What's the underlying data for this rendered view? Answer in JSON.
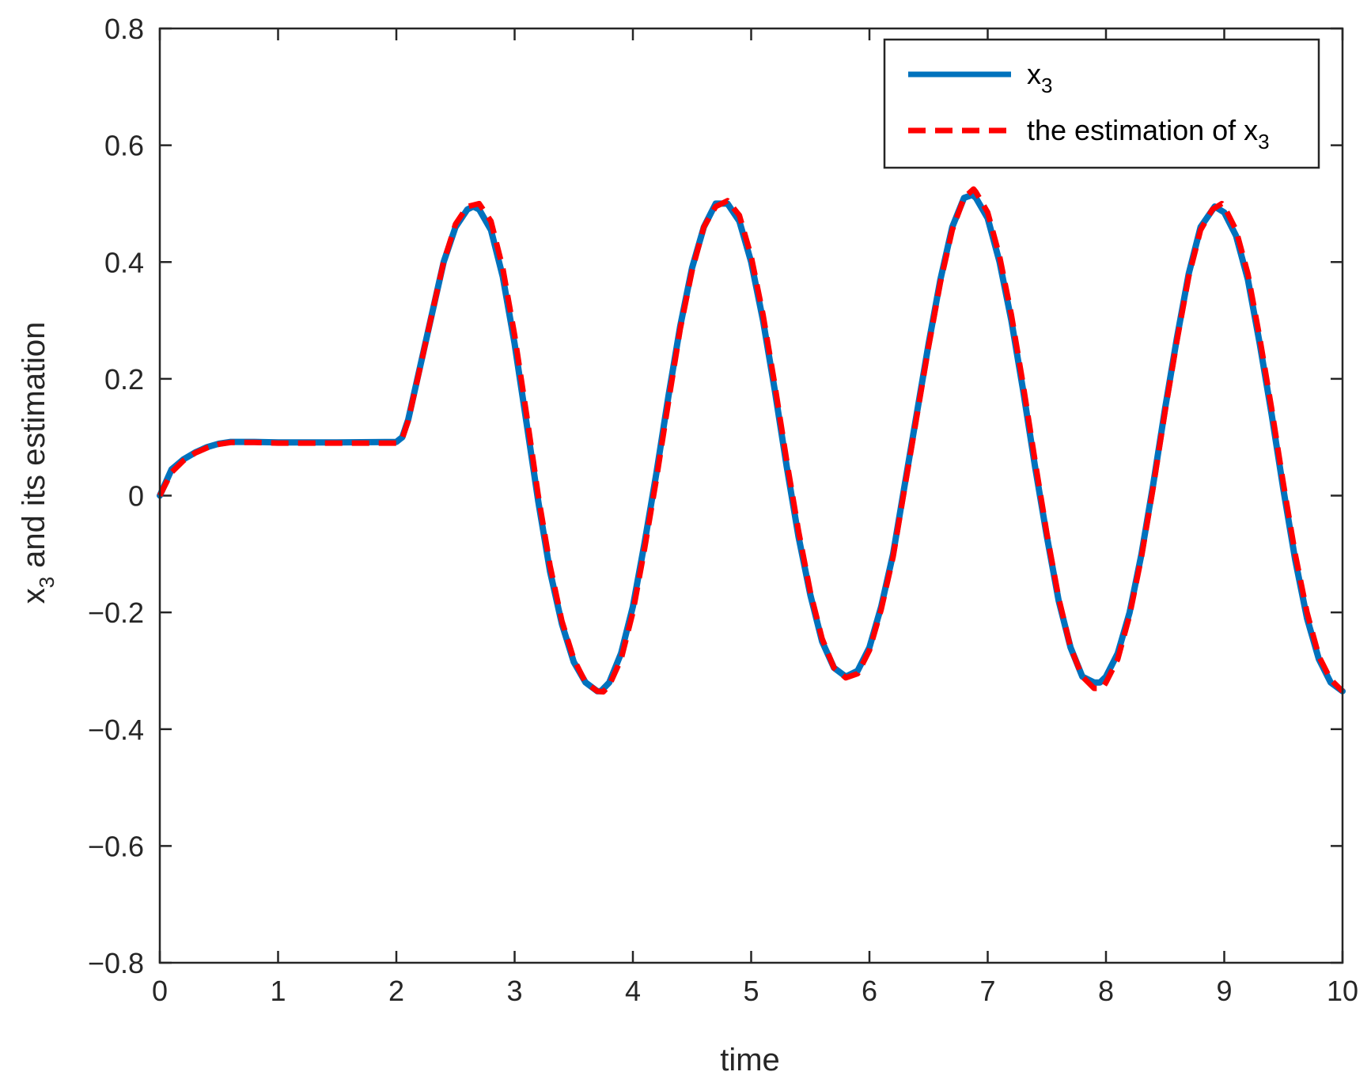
{
  "chart_data": {
    "type": "line",
    "xlabel": "time",
    "ylabel": {
      "base": "x",
      "sub": "3",
      "rest": " and its estimation"
    },
    "xlim": [
      0,
      10
    ],
    "ylim": [
      -0.8,
      0.8
    ],
    "xticks": [
      0,
      1,
      2,
      3,
      4,
      5,
      6,
      7,
      8,
      9,
      10
    ],
    "xtick_labels": [
      "0",
      "1",
      "2",
      "3",
      "4",
      "5",
      "6",
      "7",
      "8",
      "9",
      "10"
    ],
    "yticks": [
      -0.8,
      -0.6,
      -0.4,
      -0.2,
      0,
      0.2,
      0.4,
      0.6,
      0.8
    ],
    "ytick_labels": [
      "−0.8",
      "−0.6",
      "−0.4",
      "−0.2",
      "0",
      "0.2",
      "0.4",
      "0.6",
      "0.8"
    ],
    "grid": false,
    "legend_position": "top-right",
    "series": [
      {
        "legend": {
          "base": "x",
          "sub": "3",
          "rest": ""
        },
        "color": "#0072BD",
        "style": "solid",
        "x": [
          0,
          0.1,
          0.2,
          0.3,
          0.4,
          0.5,
          0.6,
          0.8,
          1.0,
          1.5,
          2.0,
          2.05,
          2.1,
          2.2,
          2.3,
          2.4,
          2.5,
          2.6,
          2.65,
          2.7,
          2.8,
          2.9,
          3.0,
          3.1,
          3.2,
          3.3,
          3.4,
          3.5,
          3.6,
          3.7,
          3.73,
          3.8,
          3.9,
          4.0,
          4.1,
          4.2,
          4.3,
          4.4,
          4.5,
          4.6,
          4.7,
          4.8,
          4.9,
          5.0,
          5.1,
          5.2,
          5.3,
          5.4,
          5.5,
          5.6,
          5.7,
          5.8,
          5.9,
          6.0,
          6.1,
          6.2,
          6.3,
          6.4,
          6.5,
          6.6,
          6.7,
          6.8,
          6.87,
          6.9,
          7.0,
          7.1,
          7.2,
          7.3,
          7.4,
          7.5,
          7.6,
          7.7,
          7.8,
          7.9,
          7.95,
          8.0,
          8.1,
          8.2,
          8.3,
          8.4,
          8.5,
          8.6,
          8.7,
          8.8,
          8.92,
          9.0,
          9.1,
          9.2,
          9.3,
          9.4,
          9.5,
          9.6,
          9.7,
          9.8,
          9.9,
          10.0
        ],
        "y": [
          0.0,
          0.045,
          0.062,
          0.074,
          0.083,
          0.089,
          0.092,
          0.092,
          0.091,
          0.091,
          0.092,
          0.1,
          0.13,
          0.22,
          0.31,
          0.4,
          0.46,
          0.49,
          0.495,
          0.49,
          0.455,
          0.375,
          0.26,
          0.125,
          -0.01,
          -0.13,
          -0.22,
          -0.285,
          -0.32,
          -0.335,
          -0.335,
          -0.32,
          -0.27,
          -0.19,
          -0.08,
          0.04,
          0.17,
          0.29,
          0.39,
          0.46,
          0.5,
          0.5,
          0.47,
          0.4,
          0.3,
          0.18,
          0.05,
          -0.07,
          -0.17,
          -0.25,
          -0.295,
          -0.31,
          -0.3,
          -0.26,
          -0.19,
          -0.1,
          0.02,
          0.14,
          0.26,
          0.37,
          0.46,
          0.51,
          0.515,
          0.51,
          0.475,
          0.4,
          0.3,
          0.18,
          0.05,
          -0.07,
          -0.18,
          -0.26,
          -0.31,
          -0.32,
          -0.32,
          -0.31,
          -0.27,
          -0.2,
          -0.1,
          0.02,
          0.15,
          0.27,
          0.38,
          0.46,
          0.495,
          0.485,
          0.445,
          0.37,
          0.26,
          0.14,
          0.01,
          -0.11,
          -0.21,
          -0.28,
          -0.32,
          -0.335
        ]
      },
      {
        "legend": {
          "base": "the estimation of x",
          "sub": "3",
          "rest": ""
        },
        "color": "#FF0000",
        "style": "dashed",
        "x": [
          0,
          0.1,
          0.2,
          0.3,
          0.4,
          0.5,
          0.6,
          0.8,
          1.0,
          1.5,
          2.0,
          2.05,
          2.1,
          2.2,
          2.3,
          2.4,
          2.5,
          2.6,
          2.7,
          2.8,
          2.9,
          3.0,
          3.1,
          3.2,
          3.3,
          3.4,
          3.5,
          3.6,
          3.7,
          3.75,
          3.8,
          3.9,
          4.0,
          4.1,
          4.2,
          4.3,
          4.4,
          4.5,
          4.6,
          4.7,
          4.8,
          4.9,
          5.0,
          5.1,
          5.2,
          5.3,
          5.4,
          5.5,
          5.6,
          5.7,
          5.8,
          5.9,
          6.0,
          6.1,
          6.2,
          6.3,
          6.4,
          6.5,
          6.6,
          6.7,
          6.8,
          6.88,
          6.9,
          7.0,
          7.1,
          7.2,
          7.3,
          7.4,
          7.5,
          7.6,
          7.7,
          7.8,
          7.9,
          7.97,
          8.0,
          8.1,
          8.2,
          8.3,
          8.4,
          8.5,
          8.6,
          8.7,
          8.8,
          8.9,
          8.98,
          9.0,
          9.1,
          9.2,
          9.3,
          9.4,
          9.5,
          9.6,
          9.7,
          9.8,
          9.9,
          10.0
        ],
        "y": [
          0.0,
          0.04,
          0.06,
          0.073,
          0.082,
          0.088,
          0.091,
          0.091,
          0.09,
          0.09,
          0.09,
          0.098,
          0.128,
          0.218,
          0.31,
          0.4,
          0.465,
          0.495,
          0.5,
          0.47,
          0.39,
          0.275,
          0.14,
          0.0,
          -0.12,
          -0.215,
          -0.28,
          -0.32,
          -0.335,
          -0.336,
          -0.325,
          -0.28,
          -0.2,
          -0.09,
          0.03,
          0.16,
          0.285,
          0.385,
          0.46,
          0.495,
          0.505,
          0.48,
          0.41,
          0.31,
          0.19,
          0.06,
          -0.06,
          -0.165,
          -0.245,
          -0.295,
          -0.312,
          -0.305,
          -0.265,
          -0.195,
          -0.105,
          0.015,
          0.135,
          0.255,
          0.365,
          0.455,
          0.51,
          0.525,
          0.52,
          0.485,
          0.41,
          0.31,
          0.19,
          0.06,
          -0.065,
          -0.175,
          -0.26,
          -0.31,
          -0.33,
          -0.33,
          -0.32,
          -0.28,
          -0.205,
          -0.105,
          0.015,
          0.145,
          0.265,
          0.375,
          0.455,
          0.49,
          0.5,
          0.495,
          0.455,
          0.38,
          0.27,
          0.15,
          0.02,
          -0.1,
          -0.2,
          -0.275,
          -0.315,
          -0.335
        ]
      }
    ]
  }
}
